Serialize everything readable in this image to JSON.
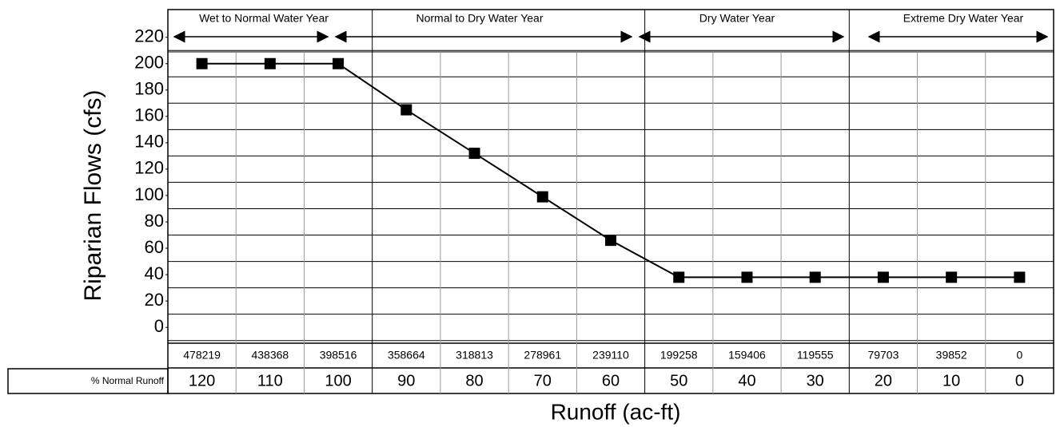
{
  "chart_data": {
    "type": "line",
    "y_label": "Riparian Flows (cfs)",
    "x_label": "Runoff (ac-ft)",
    "categories": [
      "478219",
      "438368",
      "398516",
      "358664",
      "318813",
      "278961",
      "239110",
      "199258",
      "159406",
      "119555",
      "79703",
      "39852",
      "0"
    ],
    "row_label": "% Normal Runoff",
    "percent_normal": [
      120,
      110,
      100,
      90,
      80,
      70,
      60,
      50,
      40,
      30,
      20,
      10,
      0
    ],
    "series": [
      {
        "color": "#000000",
        "values": [
          200,
          200,
          200,
          165,
          132,
          99,
          66,
          38,
          38,
          38,
          38,
          38,
          38
        ]
      }
    ],
    "ylim": [
      -12,
      241
    ],
    "yticks": [
      0,
      20,
      40,
      60,
      80,
      100,
      120,
      140,
      160,
      180,
      200,
      220
    ],
    "annotations": [
      "Wet to Normal Water Year",
      "Normal to Dry Water Year",
      "Dry Water Year",
      "Extreme Dry Water Year"
    ],
    "grid": true
  }
}
